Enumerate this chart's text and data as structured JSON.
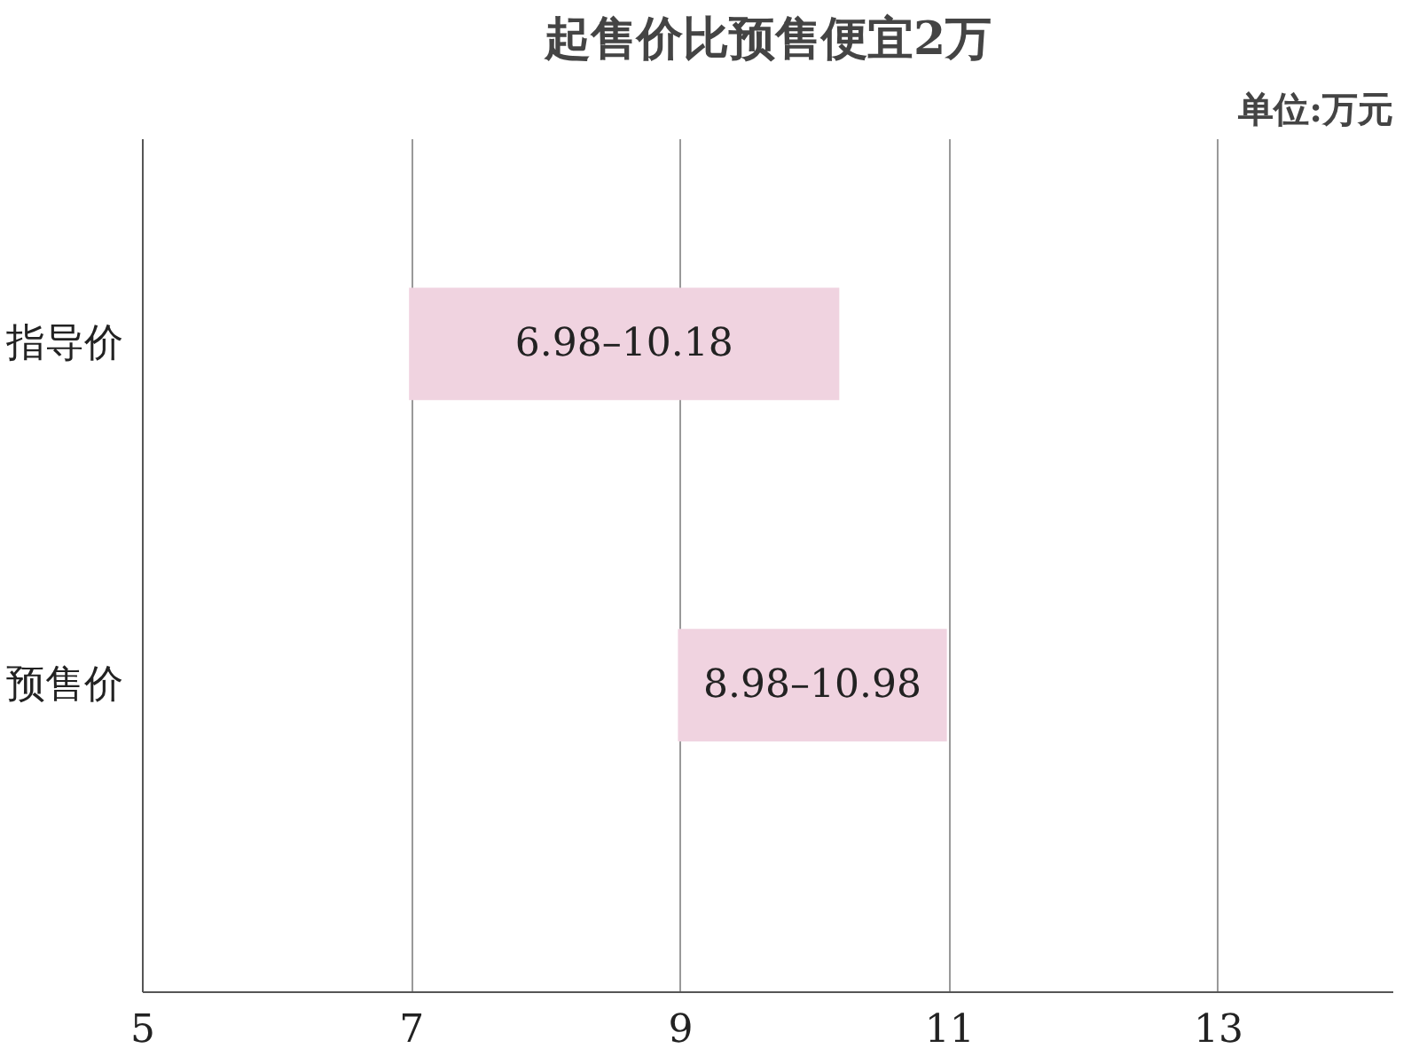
{
  "chart_data": {
    "type": "bar",
    "orientation": "horizontal",
    "title": "起售价比预售便宜2万",
    "annotations": [
      "单位:万元"
    ],
    "categories": [
      "指导价",
      "预售价"
    ],
    "base": [
      6.98,
      8.98
    ],
    "values": [
      3.2,
      2.0
    ],
    "color": "#f0d3e0",
    "value_labels": [
      "6.98–10.18",
      "8.98–10.98"
    ],
    "xlim": [
      5,
      14.3
    ],
    "xticks": [
      5,
      7,
      9,
      11,
      13
    ],
    "grid": "x"
  }
}
